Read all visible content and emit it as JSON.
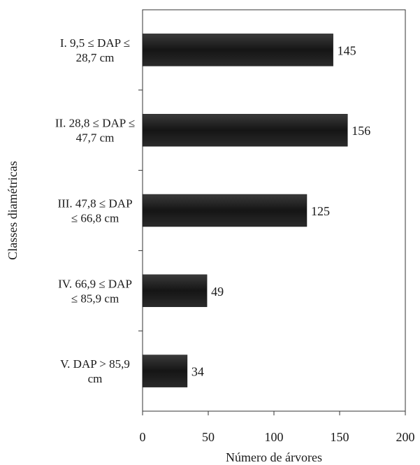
{
  "chart_data": {
    "type": "bar",
    "orientation": "horizontal",
    "categories": [
      [
        "I. 9,5 ≤ DAP ≤",
        "28,7 cm"
      ],
      [
        "II. 28,8 ≤ DAP ≤",
        "47,7 cm"
      ],
      [
        "III. 47,8 ≤ DAP",
        "≤ 66,8 cm"
      ],
      [
        "IV. 66,9 ≤ DAP",
        "≤ 85,9 cm"
      ],
      [
        "V. DAP > 85,9",
        "cm"
      ]
    ],
    "values": [
      145,
      156,
      125,
      49,
      34
    ],
    "xlabel": "Número de árvores",
    "ylabel": "Classes diamétricas",
    "xlim": [
      0,
      200
    ],
    "xticks": [
      0,
      50,
      100,
      150,
      200
    ],
    "grid": false,
    "legend": "none",
    "bar_color": "#1c1c1c"
  }
}
